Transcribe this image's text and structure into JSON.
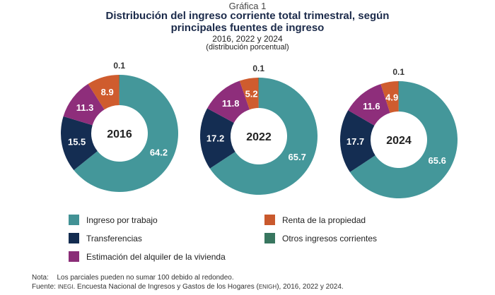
{
  "header": {
    "label": "Gráfica 1",
    "title_line1": "Distribución del ingreso corriente total trimestral, según",
    "title_line2": "principales fuentes de ingreso",
    "years": "2016, 2022 y 2024",
    "unit": "(distribución porcentual)"
  },
  "chart_data": {
    "type": "pie",
    "subtype": "donut",
    "title": "Distribución del ingreso corriente total trimestral, según principales fuentes de ingreso",
    "subtitle": "2016, 2022 y 2024 (distribución porcentual)",
    "categories": [
      "Ingreso por trabajo",
      "Transferencias",
      "Estimación del alquiler de la vivienda",
      "Renta de la propiedad",
      "Otros ingresos corrientes"
    ],
    "colors": [
      "#44979a",
      "#142d52",
      "#8e2e7b",
      "#cf5c2e",
      "#3a7a62"
    ],
    "series": [
      {
        "name": "2016",
        "values": [
          64.2,
          15.5,
          11.3,
          8.9,
          0.1
        ]
      },
      {
        "name": "2022",
        "values": [
          65.7,
          17.2,
          11.8,
          5.2,
          0.1
        ]
      },
      {
        "name": "2024",
        "values": [
          65.6,
          17.7,
          11.6,
          4.9,
          0.1
        ]
      }
    ],
    "legend_placement": "bottom"
  },
  "legend": {
    "items": [
      {
        "label": "Ingreso por trabajo",
        "color": "#44979a"
      },
      {
        "label": "Transferencias",
        "color": "#142d52"
      },
      {
        "label": "Estimación del alquiler de la vivienda",
        "color": "#8e2e7b"
      },
      {
        "label": "Renta de la propiedad",
        "color": "#cf5c2e"
      },
      {
        "label": "Otros ingresos corrientes",
        "color": "#3a7a62"
      }
    ]
  },
  "footer": {
    "note_label": "Nota:",
    "note_text": "Los parciales pueden no sumar 100 debido al redondeo.",
    "source_label": "Fuente:",
    "source_org": "INEGI",
    "source_text_a": ". Encuesta Nacional de Ingresos y Gastos de los Hogares (",
    "source_abbr": "ENIGH",
    "source_text_b": "), 2016, 2022 y 2024."
  }
}
